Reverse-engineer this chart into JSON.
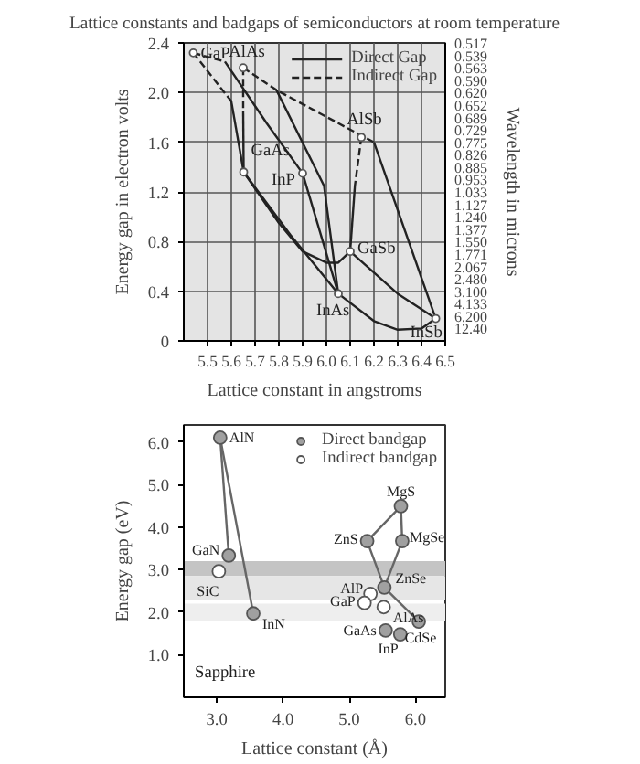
{
  "chart_data": [
    {
      "type": "line",
      "title": "Lattice constants and badgaps of semiconductors at room temperature",
      "xlabel": "Lattice constant in angstroms",
      "ylabel": "Energy gap in electron volts",
      "y2label": "Wavelength in microns",
      "xlim": [
        5.4,
        6.5
      ],
      "xticks": [
        5.5,
        5.6,
        5.7,
        5.8,
        5.9,
        {
          "value": 6,
          "label": "6.0"
        },
        6.1,
        6.2,
        6.3,
        6.4,
        6.5
      ],
      "ylim": [
        0,
        2.4
      ],
      "yticks": [
        0,
        0.4,
        0.8,
        1.2,
        1.6,
        {
          "value": 2,
          "label": "2.0"
        },
        2.4
      ],
      "y2_categories": [
        "0.517",
        "0.539",
        "0.563",
        "0.590",
        "0.620",
        "0.652",
        "0.689",
        "0.729",
        "0.775",
        "0.826",
        "0.885",
        "0.953",
        "1.033",
        "1.127",
        "1.240",
        "1.377",
        "1.550",
        "1.771",
        "2.067",
        "2.480",
        "3.100",
        "4.133",
        "6.200",
        "12.40",
        null
      ],
      "grid": true,
      "legend": "top right",
      "series": [
        {
          "name": "Direct Gap",
          "type": "line",
          "line_style": "solid",
          "color": "#222222",
          "x": [
            5.573,
            5.75,
            5.9
          ],
          "values": [
            2.25,
            1.75,
            1.35
          ]
        },
        {
          "name": "Indirect Gap",
          "type": "line",
          "line_style": "dashed",
          "color": "#222222",
          "x": [
            5.65,
            5.79,
            6.2
          ],
          "values": [
            2.2,
            2.02,
            1.6
          ]
        },
        {
          "type": "line",
          "line_style": "dashed",
          "color": "#222222",
          "x": [
            5.44,
            5.573
          ],
          "values": [
            2.32,
            2.25
          ]
        },
        {
          "type": "line",
          "line_style": "dashed",
          "color": "#222222",
          "x": [
            5.44,
            5.6
          ],
          "values": [
            2.32,
            1.93
          ]
        },
        {
          "type": "line",
          "line_style": "solid",
          "color": "#222222",
          "x": [
            5.6,
            5.652
          ],
          "values": [
            1.93,
            1.36
          ]
        },
        {
          "type": "line",
          "line_style": "dashed",
          "color": "#222222",
          "x": [
            5.65,
            5.65
          ],
          "values": [
            2.2,
            1.85
          ]
        },
        {
          "type": "line",
          "line_style": "solid",
          "color": "#222222",
          "x": [
            5.65,
            5.652
          ],
          "values": [
            1.85,
            1.36
          ]
        },
        {
          "type": "line",
          "line_style": "solid",
          "color": "#222222",
          "x": [
            5.79,
            5.99,
            6.05
          ],
          "values": [
            2.02,
            1.25,
            0.38
          ]
        },
        {
          "type": "line",
          "line_style": "solid",
          "color": "#222222",
          "x": [
            5.9,
            6.05
          ],
          "values": [
            1.35,
            0.38
          ]
        },
        {
          "type": "line",
          "line_style": "solid",
          "color": "#222222",
          "x": [
            5.652,
            5.85,
            6.05
          ],
          "values": [
            1.36,
            0.85,
            0.38
          ]
        },
        {
          "type": "line",
          "line_style": "solid",
          "color": "#222222",
          "x": [
            5.652,
            5.8,
            5.9,
            6.0,
            6.05,
            6.1
          ],
          "values": [
            1.36,
            0.95,
            0.72,
            0.63,
            0.63,
            0.72
          ]
        },
        {
          "type": "line",
          "line_style": "solid",
          "color": "#222222",
          "x": [
            6.1,
            6.3,
            6.46
          ],
          "values": [
            0.72,
            0.38,
            0.18
          ]
        },
        {
          "type": "line",
          "line_style": "solid",
          "color": "#222222",
          "x": [
            6.05,
            6.2,
            6.3,
            6.4,
            6.46
          ],
          "values": [
            0.38,
            0.16,
            0.09,
            0.1,
            0.18
          ]
        },
        {
          "type": "line",
          "line_style": "solid",
          "color": "#222222",
          "x": [
            6.2,
            6.46
          ],
          "values": [
            1.6,
            0.18
          ]
        },
        {
          "type": "line",
          "line_style": "dashed",
          "color": "#222222",
          "x": [
            6.147,
            6.12
          ],
          "values": [
            1.64,
            1.25
          ]
        },
        {
          "type": "line",
          "line_style": "solid",
          "color": "#222222",
          "x": [
            6.12,
            6.1
          ],
          "values": [
            1.25,
            0.72
          ]
        },
        {
          "type": "scatter",
          "marker": "circle",
          "color": "#ffffff",
          "x": [
            5.44,
            5.65,
            5.652,
            5.9,
            6.147,
            6.1,
            6.05,
            6.46
          ],
          "values": [
            2.32,
            2.2,
            1.36,
            1.35,
            1.64,
            0.72,
            0.38,
            0.18
          ]
        }
      ],
      "annotations": [
        {
          "text": "GaP",
          "x": 5.44,
          "y": 2.32
        },
        {
          "text": "AlAs",
          "x": 5.65,
          "y": 2.2
        },
        {
          "text": "GaAs",
          "x": 5.652,
          "y": 1.36
        },
        {
          "text": "InP",
          "x": 5.9,
          "y": 1.35
        },
        {
          "text": "AlSb",
          "x": 6.147,
          "y": 1.64
        },
        {
          "text": "GaSb",
          "x": 6.1,
          "y": 0.72
        },
        {
          "text": "InAs",
          "x": 6.05,
          "y": 0.38
        },
        {
          "text": "InSb",
          "x": 6.46,
          "y": 0.18
        }
      ]
    },
    {
      "type": "scatter",
      "xlabel": "Lattice constant (Å)",
      "ylabel": "Energy gap (eV)",
      "xlim": [
        2.5,
        6.45
      ],
      "xticks": [
        {
          "value": 3,
          "label": "3.0"
        },
        {
          "value": 4,
          "label": "4.0"
        },
        {
          "value": 5,
          "label": "5.0"
        },
        {
          "value": 6,
          "label": "6.0"
        }
      ],
      "ylim": [
        0,
        6.4
      ],
      "yticks": [
        {
          "value": 1,
          "label": "1.0"
        },
        {
          "value": 2,
          "label": "2.0"
        },
        {
          "value": 3,
          "label": "3.0"
        },
        {
          "value": 4,
          "label": "4.0"
        },
        {
          "value": 5,
          "label": "5.0"
        },
        {
          "value": 6,
          "label": "6.0"
        }
      ],
      "grid": false,
      "legend": "top right",
      "bands": [
        {
          "axis": "y",
          "from": 2.85,
          "to": 3.2,
          "color": "#c4c4c4"
        },
        {
          "axis": "y",
          "from": 2.3,
          "to": 2.85,
          "color": "#e6e6e6"
        },
        {
          "axis": "y",
          "from": 1.8,
          "to": 2.2,
          "color": "#eeeeee"
        }
      ],
      "series": [
        {
          "type": "line",
          "line_style": "solid",
          "color": "#666666",
          "x": [
            3.05,
            3.18
          ],
          "values": [
            6.1,
            3.33
          ]
        },
        {
          "type": "line",
          "line_style": "solid",
          "color": "#666666",
          "x": [
            3.05,
            3.55
          ],
          "values": [
            6.1,
            1.97
          ]
        },
        {
          "type": "line",
          "line_style": "solid",
          "color": "#666666",
          "x": [
            5.27,
            5.78,
            5.8
          ],
          "values": [
            3.67,
            4.49,
            3.67
          ]
        },
        {
          "type": "line",
          "line_style": "solid",
          "color": "#666666",
          "x": [
            5.27,
            5.53,
            6.05
          ],
          "values": [
            3.67,
            2.58,
            1.78
          ]
        },
        {
          "type": "line",
          "line_style": "solid",
          "color": "#666666",
          "x": [
            5.8,
            5.53
          ],
          "values": [
            3.67,
            2.58
          ]
        },
        {
          "name": "Direct bandgap",
          "type": "scatter",
          "marker": "circle",
          "color": "#a0a0a0",
          "x": [
            3.05,
            3.18,
            3.55,
            5.78,
            5.27,
            5.8,
            5.53,
            6.05,
            5.55,
            5.77
          ],
          "values": [
            6.1,
            3.33,
            1.97,
            4.49,
            3.67,
            3.67,
            2.58,
            1.78,
            1.57,
            1.48
          ]
        },
        {
          "name": "Indirect bandgap",
          "type": "scatter",
          "marker": "circle",
          "color": "#ffffff",
          "x": [
            3.03,
            5.32,
            5.23,
            5.52
          ],
          "values": [
            2.96,
            2.43,
            2.22,
            2.12
          ]
        }
      ],
      "annotations": [
        {
          "text": "AlN",
          "x": 3.05,
          "y": 6.1
        },
        {
          "text": "GaN",
          "x": 3.18,
          "y": 3.33
        },
        {
          "text": "InN",
          "x": 3.55,
          "y": 1.97
        },
        {
          "text": "SiC",
          "x": 3.03,
          "y": 2.96
        },
        {
          "text": "MgS",
          "x": 5.78,
          "y": 4.49
        },
        {
          "text": "ZnS",
          "x": 5.27,
          "y": 3.67
        },
        {
          "text": "MgSe",
          "x": 5.8,
          "y": 3.67
        },
        {
          "text": "ZnSe",
          "x": 5.53,
          "y": 2.58
        },
        {
          "text": "AlP",
          "x": 5.32,
          "y": 2.43
        },
        {
          "text": "GaP",
          "x": 5.23,
          "y": 2.22
        },
        {
          "text": "AlAs",
          "x": 5.52,
          "y": 2.12
        },
        {
          "text": "GaAs",
          "x": 5.55,
          "y": 1.57
        },
        {
          "text": "InP",
          "x": 5.77,
          "y": 1.48
        },
        {
          "text": "CdSe",
          "x": 6.05,
          "y": 1.78
        },
        "Sapphire"
      ]
    }
  ]
}
